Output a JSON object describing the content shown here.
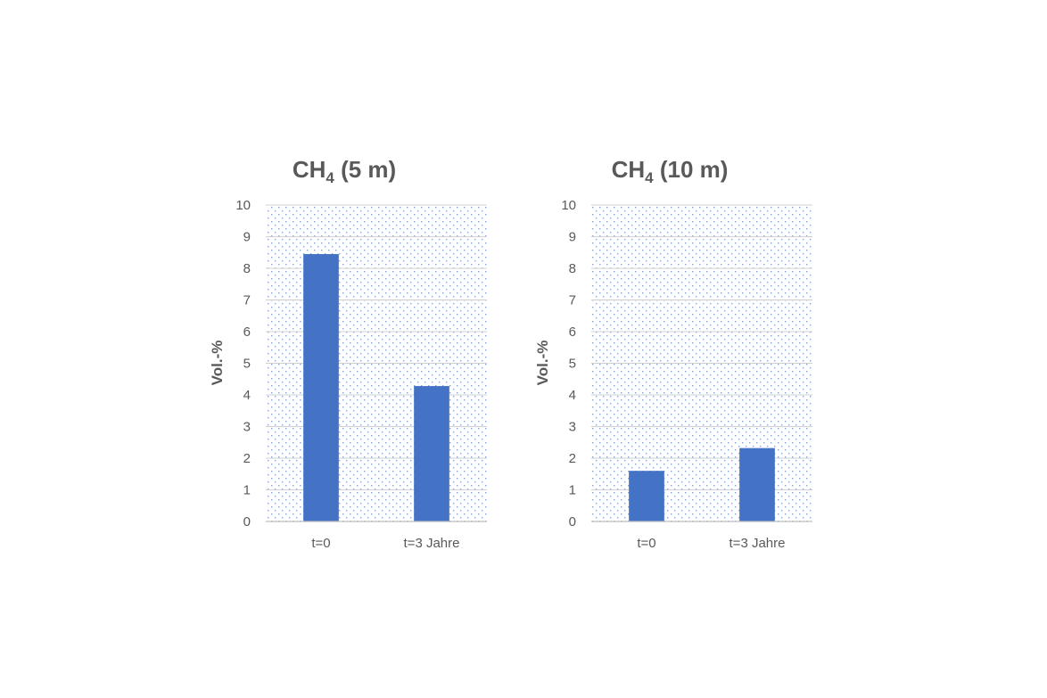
{
  "chart_data": [
    {
      "type": "bar",
      "title": {
        "main": "CH",
        "sub": "4",
        "rest": " (5 m)"
      },
      "ylabel": "Vol.-%",
      "xlabel": "",
      "categories": [
        "t=0",
        "t=3 Jahre"
      ],
      "values": [
        8.45,
        4.28
      ],
      "ylim": [
        0,
        10
      ],
      "yticks": [
        "0",
        "1",
        "2",
        "3",
        "4",
        "5",
        "6",
        "7",
        "8",
        "9",
        "10"
      ],
      "grid": true,
      "legend": "none",
      "bar_color": "#4472C4",
      "pattern_color": "#4472C4"
    },
    {
      "type": "bar",
      "title": {
        "main": "CH",
        "sub": "4",
        "rest": " (10 m)"
      },
      "ylabel": "Vol.-%",
      "xlabel": "",
      "categories": [
        "t=0",
        "t=3 Jahre"
      ],
      "values": [
        1.6,
        2.32
      ],
      "ylim": [
        0,
        10
      ],
      "yticks": [
        "0",
        "1",
        "2",
        "3",
        "4",
        "5",
        "6",
        "7",
        "8",
        "9",
        "10"
      ],
      "grid": true,
      "legend": "none",
      "bar_color": "#4472C4",
      "pattern_color": "#4472C4"
    }
  ]
}
